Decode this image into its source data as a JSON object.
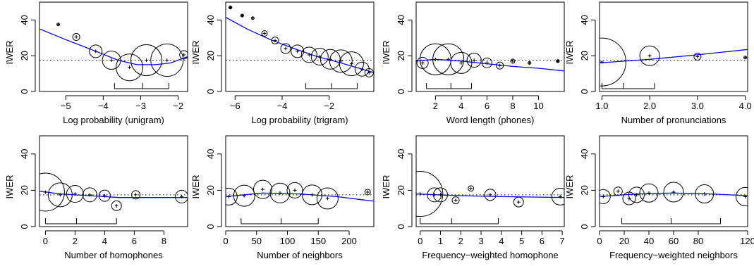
{
  "chart_data": [
    {
      "type": "scatter",
      "xlabel": "Log probability (unigram)",
      "ylabel": "IWER",
      "xlim": [
        -5.7,
        -1.75
      ],
      "ylim": [
        0,
        50
      ],
      "xticks": [
        -5,
        -4,
        -3,
        -2
      ],
      "yticks": [
        0,
        20,
        40
      ],
      "reference_line": 17.5,
      "points": [
        {
          "x": -5.2,
          "y": 37.5,
          "size": 2
        },
        {
          "x": -4.72,
          "y": 30.5,
          "size": 5
        },
        {
          "x": -4.2,
          "y": 22.5,
          "size": 9
        },
        {
          "x": -3.78,
          "y": 17.5,
          "size": 13
        },
        {
          "x": -3.3,
          "y": 13.5,
          "size": 19
        },
        {
          "x": -2.85,
          "y": 17.5,
          "size": 22
        },
        {
          "x": -2.3,
          "y": 17.5,
          "size": 23
        },
        {
          "x": -1.85,
          "y": 20.5,
          "size": 6
        }
      ],
      "smooth": [
        [
          -5.7,
          35
        ],
        [
          -5.0,
          29
        ],
        [
          -4.2,
          22.5
        ],
        [
          -3.6,
          17.5
        ],
        [
          -3.1,
          15
        ],
        [
          -2.6,
          15
        ],
        [
          -2.2,
          16
        ],
        [
          -1.75,
          19.5
        ]
      ],
      "quantile_bar": [
        -3.7,
        -2.95,
        -2.25
      ]
    },
    {
      "type": "scatter",
      "xlabel": "Log probability (trigram)",
      "ylabel": "IWER",
      "xlim": [
        -6.4,
        -0.1
      ],
      "ylim": [
        0,
        50
      ],
      "xticks": [
        -6,
        -4,
        -2
      ],
      "yticks": [
        0,
        20,
        40
      ],
      "reference_line": 17.5,
      "points": [
        {
          "x": -6.2,
          "y": 47,
          "size": 0
        },
        {
          "x": -5.7,
          "y": 42.5,
          "size": 0
        },
        {
          "x": -5.25,
          "y": 41,
          "size": 2
        },
        {
          "x": -4.75,
          "y": 32.5,
          "size": 4
        },
        {
          "x": -4.3,
          "y": 28.5,
          "size": 5
        },
        {
          "x": -3.85,
          "y": 24,
          "size": 7
        },
        {
          "x": -3.35,
          "y": 22.5,
          "size": 9
        },
        {
          "x": -2.85,
          "y": 20.5,
          "size": 11
        },
        {
          "x": -2.4,
          "y": 19.5,
          "size": 12
        },
        {
          "x": -1.95,
          "y": 18,
          "size": 14
        },
        {
          "x": -1.5,
          "y": 17,
          "size": 16
        },
        {
          "x": -1.05,
          "y": 15.5,
          "size": 17
        },
        {
          "x": -0.6,
          "y": 12.5,
          "size": 10
        },
        {
          "x": -0.3,
          "y": 10.5,
          "size": 6
        }
      ],
      "smooth": [
        [
          -6.4,
          41.5
        ],
        [
          -5.5,
          35
        ],
        [
          -4.5,
          29
        ],
        [
          -3.5,
          24
        ],
        [
          -2.5,
          19.5
        ],
        [
          -1.5,
          16
        ],
        [
          -0.6,
          12.5
        ],
        [
          -0.1,
          10.5
        ]
      ],
      "quantile_bar": [
        -3.0,
        -1.9,
        -0.8
      ]
    },
    {
      "type": "scatter",
      "xlabel": "Word length (phones)",
      "ylabel": "IWER",
      "xlim": [
        0.5,
        12
      ],
      "ylim": [
        0,
        50
      ],
      "xticks": [
        2,
        4,
        6,
        8,
        10
      ],
      "yticks": [
        0,
        20,
        40
      ],
      "reference_line": 17.5,
      "points": [
        {
          "x": 1.0,
          "y": 16,
          "size": 8
        },
        {
          "x": 2.0,
          "y": 18,
          "size": 22
        },
        {
          "x": 3.0,
          "y": 18,
          "size": 22
        },
        {
          "x": 4.0,
          "y": 16,
          "size": 15
        },
        {
          "x": 5.0,
          "y": 17.5,
          "size": 10
        },
        {
          "x": 6.0,
          "y": 16,
          "size": 7
        },
        {
          "x": 7.0,
          "y": 14.5,
          "size": 5
        },
        {
          "x": 8.0,
          "y": 17,
          "size": 3
        },
        {
          "x": 9.3,
          "y": 16,
          "size": 2
        },
        {
          "x": 11.5,
          "y": 17,
          "size": 0
        }
      ],
      "smooth": [
        [
          0.5,
          17
        ],
        [
          2,
          18
        ],
        [
          4,
          17
        ],
        [
          6,
          15.5
        ],
        [
          8,
          14
        ],
        [
          10,
          13
        ],
        [
          12,
          11.5
        ]
      ],
      "quantile_bar": [
        1.3,
        3.2,
        4.8
      ]
    },
    {
      "type": "scatter",
      "xlabel": "Number of pronunciations",
      "ylabel": "IWER",
      "xlim": [
        0.95,
        4.05
      ],
      "ylim": [
        0,
        50
      ],
      "xticks": [
        1.0,
        2.0,
        3.0,
        4.0
      ],
      "xtick_labels": [
        "1.0",
        "2.0",
        "3.0",
        "4.0"
      ],
      "yticks": [
        0,
        20,
        40
      ],
      "reference_line": 17.5,
      "points": [
        {
          "x": 1.0,
          "y": 16.5,
          "size": 34
        },
        {
          "x": 2.0,
          "y": 20,
          "size": 14
        },
        {
          "x": 3.0,
          "y": 19.5,
          "size": 5
        },
        {
          "x": 4.0,
          "y": 19,
          "size": 2
        }
      ],
      "smooth": [
        [
          0.95,
          16
        ],
        [
          2,
          18
        ],
        [
          3,
          20.5
        ],
        [
          4.05,
          23.5
        ]
      ],
      "quantile_bar": [
        1.0,
        1.45,
        2.1
      ]
    },
    {
      "type": "scatter",
      "xlabel": "Number of homophones",
      "ylabel": "IWER",
      "xlim": [
        -0.4,
        9.6
      ],
      "ylim": [
        0,
        50
      ],
      "xticks": [
        0,
        2,
        4,
        6,
        8
      ],
      "yticks": [
        0,
        20,
        40
      ],
      "reference_line": 17.5,
      "points": [
        {
          "x": 0.0,
          "y": 19,
          "size": 27
        },
        {
          "x": 1.0,
          "y": 17.5,
          "size": 17
        },
        {
          "x": 2.0,
          "y": 18,
          "size": 12
        },
        {
          "x": 3.0,
          "y": 17.5,
          "size": 10
        },
        {
          "x": 4.0,
          "y": 17,
          "size": 8
        },
        {
          "x": 4.8,
          "y": 11.5,
          "size": 7
        },
        {
          "x": 6.1,
          "y": 17.5,
          "size": 6
        },
        {
          "x": 9.2,
          "y": 16.5,
          "size": 9
        }
      ],
      "smooth": [
        [
          -0.4,
          19.5
        ],
        [
          1,
          18
        ],
        [
          3,
          17
        ],
        [
          5,
          16
        ],
        [
          7,
          16
        ],
        [
          9.6,
          16
        ]
      ],
      "quantile_bar": [
        0,
        2.1,
        4.8
      ]
    },
    {
      "type": "scatter",
      "xlabel": "Number of neighbors",
      "ylabel": "IWER",
      "xlim": [
        0,
        240
      ],
      "ylim": [
        0,
        50
      ],
      "xticks": [
        0,
        50,
        100,
        150,
        200
      ],
      "yticks": [
        0,
        20,
        40
      ],
      "reference_line": 17.5,
      "points": [
        {
          "x": 5,
          "y": 16.5,
          "size": 12
        },
        {
          "x": 30,
          "y": 17,
          "size": 15
        },
        {
          "x": 60,
          "y": 20.5,
          "size": 13
        },
        {
          "x": 88,
          "y": 18.5,
          "size": 14
        },
        {
          "x": 112,
          "y": 20,
          "size": 11
        },
        {
          "x": 140,
          "y": 17.5,
          "size": 14
        },
        {
          "x": 165,
          "y": 15.5,
          "size": 15
        },
        {
          "x": 230,
          "y": 19,
          "size": 4
        }
      ],
      "smooth": [
        [
          0,
          16.5
        ],
        [
          60,
          18.5
        ],
        [
          120,
          18
        ],
        [
          180,
          16.5
        ],
        [
          240,
          14
        ]
      ],
      "quantile_bar": [
        25,
        90,
        150
      ]
    },
    {
      "type": "scatter",
      "xlabel": "Frequency−weighted homophone",
      "ylabel": "IWER",
      "xlim": [
        -0.2,
        7.1
      ],
      "ylim": [
        0,
        50
      ],
      "xticks": [
        0,
        1,
        2,
        3,
        4,
        5,
        6,
        7
      ],
      "yticks": [
        0,
        20,
        40
      ],
      "reference_line": 17.5,
      "points": [
        {
          "x": 0.0,
          "y": 18,
          "size": 32
        },
        {
          "x": 0.7,
          "y": 17.5,
          "size": 10
        },
        {
          "x": 1.0,
          "y": 17.5,
          "size": 10
        },
        {
          "x": 1.75,
          "y": 14.5,
          "size": 5
        },
        {
          "x": 2.5,
          "y": 21,
          "size": 4
        },
        {
          "x": 3.45,
          "y": 17.5,
          "size": 8
        },
        {
          "x": 4.85,
          "y": 13.5,
          "size": 7
        },
        {
          "x": 6.9,
          "y": 16.5,
          "size": 12
        }
      ],
      "smooth": [
        [
          -0.2,
          18
        ],
        [
          2,
          17
        ],
        [
          4,
          16.5
        ],
        [
          7.1,
          16
        ]
      ],
      "quantile_bar": [
        0,
        1.55,
        3.85
      ]
    },
    {
      "type": "scatter",
      "xlabel": "Frequency−weighted neighbors",
      "ylabel": "IWER",
      "xlim": [
        0,
        120
      ],
      "ylim": [
        0,
        50
      ],
      "xticks": [
        0,
        20,
        40,
        60,
        80,
        120
      ],
      "yticks": [
        0,
        20,
        40
      ],
      "reference_line": 17.5,
      "points": [
        {
          "x": 3,
          "y": 16.5,
          "size": 10
        },
        {
          "x": 15,
          "y": 19.5,
          "size": 6
        },
        {
          "x": 24,
          "y": 15.5,
          "size": 9
        },
        {
          "x": 30,
          "y": 17.5,
          "size": 11
        },
        {
          "x": 40,
          "y": 18.5,
          "size": 13
        },
        {
          "x": 60,
          "y": 19,
          "size": 14
        },
        {
          "x": 85,
          "y": 18,
          "size": 13
        },
        {
          "x": 118,
          "y": 16.5,
          "size": 13
        }
      ],
      "smooth": [
        [
          0,
          16.5
        ],
        [
          30,
          18
        ],
        [
          60,
          18.5
        ],
        [
          90,
          18
        ],
        [
          120,
          17
        ]
      ],
      "quantile_bar": [
        18,
        58,
        98
      ]
    }
  ],
  "colors": {
    "smooth_line": "#0000ee",
    "axis": "#000000",
    "reference_line": "#000000"
  }
}
